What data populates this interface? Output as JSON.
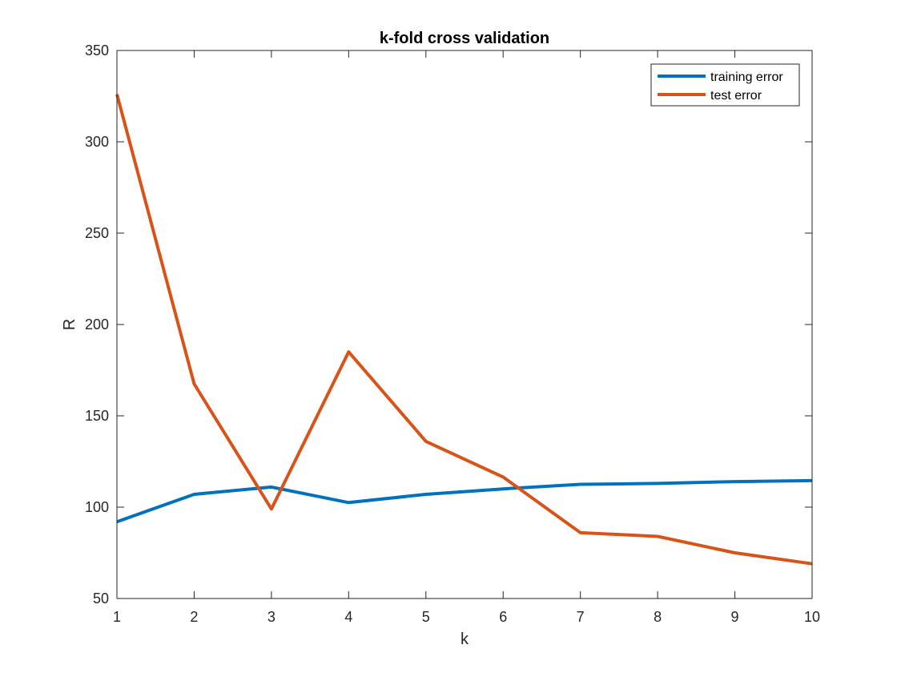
{
  "chart_data": {
    "type": "line",
    "title": "k-fold cross validation",
    "xlabel": "k",
    "ylabel": "R",
    "xlim": [
      1,
      10
    ],
    "ylim": [
      50,
      350
    ],
    "x": [
      1,
      2,
      3,
      4,
      5,
      6,
      7,
      8,
      9,
      10
    ],
    "xticks": [
      1,
      2,
      3,
      4,
      5,
      6,
      7,
      8,
      9,
      10
    ],
    "yticks": [
      50,
      100,
      150,
      200,
      250,
      300,
      350
    ],
    "grid": false,
    "legend_position": "top-right",
    "series": [
      {
        "name": "training error",
        "color": "#0072BD",
        "values": [
          92,
          107,
          111,
          102.5,
          107,
          110,
          112.5,
          113,
          114,
          114.5
        ]
      },
      {
        "name": "test error",
        "color": "#D95319",
        "values": [
          326,
          167.5,
          99,
          185,
          136,
          116.5,
          86,
          84,
          75,
          69
        ]
      }
    ]
  }
}
